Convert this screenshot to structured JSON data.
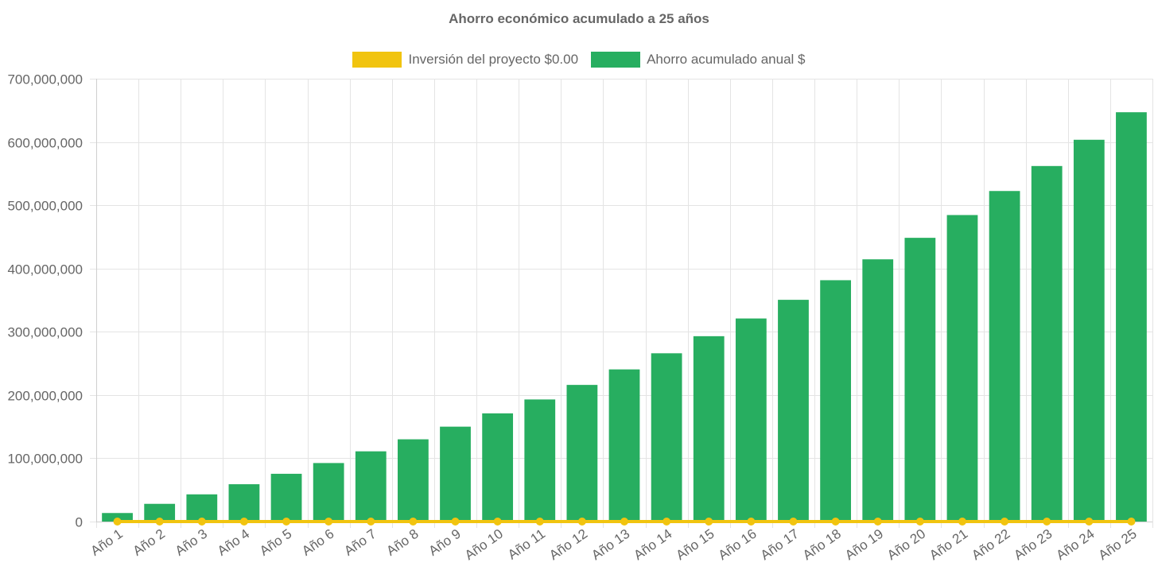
{
  "chart_data": {
    "type": "bar",
    "title": "Ahorro económico acumulado a 25 años",
    "xlabel": "",
    "ylabel": "",
    "categories": [
      "Año 1",
      "Año 2",
      "Año 3",
      "Año 4",
      "Año 5",
      "Año 6",
      "Año 7",
      "Año 8",
      "Año 9",
      "Año 10",
      "Año 11",
      "Año 12",
      "Año 13",
      "Año 14",
      "Año 15",
      "Año 16",
      "Año 17",
      "Año 18",
      "Año 19",
      "Año 20",
      "Año 21",
      "Año 22",
      "Año 23",
      "Año 24",
      "Año 25"
    ],
    "ylim": [
      0,
      700000000
    ],
    "yticks": [
      "0",
      "100,000,000",
      "200,000,000",
      "300,000,000",
      "400,000,000",
      "500,000,000",
      "600,000,000",
      "700,000,000"
    ],
    "grid": true,
    "legend_position": "top",
    "series": [
      {
        "name": "Inversión del proyecto $0.00",
        "type": "line",
        "color": "#f1c40f",
        "values": [
          0,
          0,
          0,
          0,
          0,
          0,
          0,
          0,
          0,
          0,
          0,
          0,
          0,
          0,
          0,
          0,
          0,
          0,
          0,
          0,
          0,
          0,
          0,
          0,
          0
        ]
      },
      {
        "name": "Ahorro acumulado anual $",
        "type": "bar",
        "color": "#27ae60",
        "values": [
          13500000,
          28000000,
          43000000,
          59000000,
          75500000,
          92500000,
          111000000,
          130000000,
          150000000,
          171000000,
          193000000,
          216000000,
          240500000,
          266000000,
          293000000,
          321000000,
          350500000,
          381500000,
          414500000,
          448500000,
          484500000,
          522500000,
          562000000,
          603500000,
          647000000
        ]
      }
    ]
  }
}
